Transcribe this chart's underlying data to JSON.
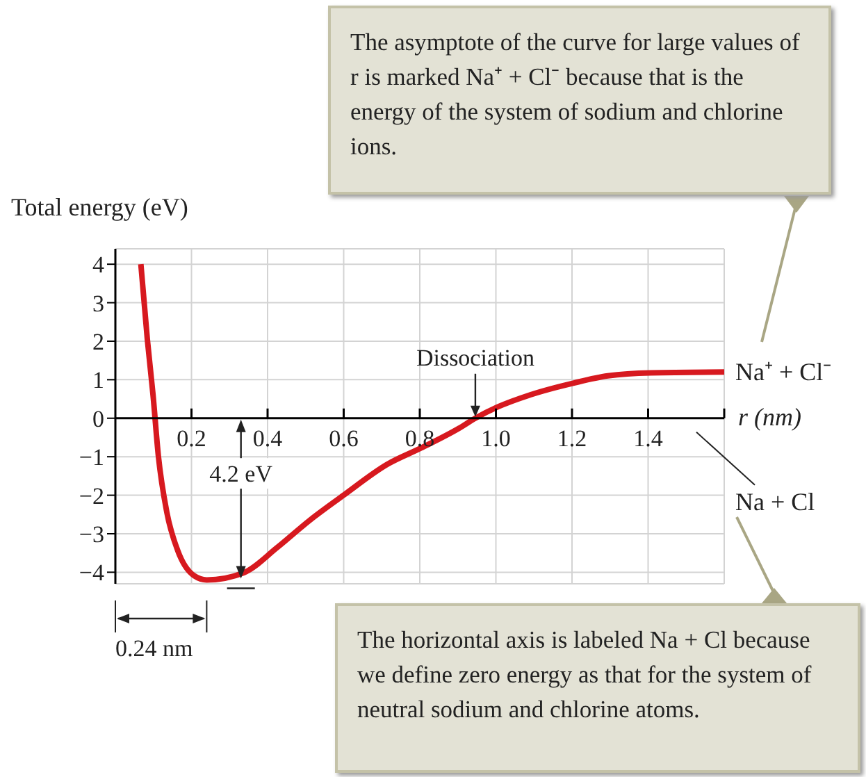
{
  "chart_data": {
    "type": "line",
    "ylabel": "Total energy (eV)",
    "xlabel": "r (nm)",
    "x": [
      0.067,
      0.084,
      0.099,
      0.113,
      0.135,
      0.164,
      0.207,
      0.24,
      0.338,
      0.425,
      0.512,
      0.601,
      0.714,
      0.804,
      0.903,
      0.946,
      1.004,
      1.091,
      1.207,
      1.294,
      1.407,
      1.6
    ],
    "series": [
      {
        "color": "#d7191f",
        "values": [
          4,
          2.05,
          0.6,
          -0.98,
          -2.43,
          -3.44,
          -4.09,
          -4.2,
          -4.01,
          -3.36,
          -2.64,
          -1.99,
          -1.2,
          -0.77,
          -0.26,
          0,
          0.29,
          0.61,
          0.92,
          1.1,
          1.18,
          1.2
        ]
      }
    ],
    "xlim": [
      0,
      1.6
    ],
    "ylim": [
      -4.3,
      4.4
    ],
    "xticks": [
      0.2,
      0.4,
      0.6,
      0.8,
      {
        "value": 1,
        "label": "1.0"
      },
      1.2,
      1.4,
      {
        "value": 1.6,
        "label": null
      }
    ],
    "yticks": [
      -4,
      -3,
      -2,
      -1,
      0,
      1,
      2,
      3,
      4
    ],
    "grid": true,
    "marker": "none",
    "line_style": "solid",
    "annotations": [
      {
        "text": "Dissociation",
        "x": 0.946,
        "y": 0
      },
      {
        "text": "Na⁺ + Cl⁻",
        "x": 1.6,
        "y": 1.2
      },
      "Na + Cl",
      "4.2 eV",
      "0.24 nm",
      "The asymptote of the curve for large values of r is marked Na⁺ + Cl⁻ because that is the energy of the system of sodium and chlorine ions.",
      "The horizontal axis is labeled Na + Cl because we define zero energy as that for the system of neutral sodium and chlorine atoms."
    ]
  }
}
